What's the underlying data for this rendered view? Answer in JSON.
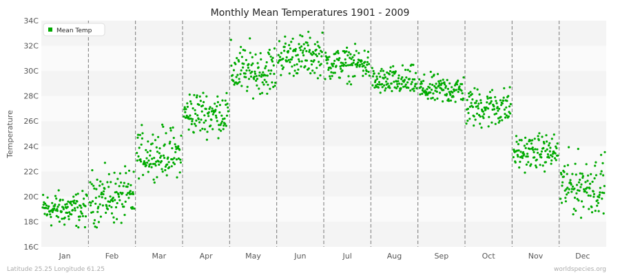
{
  "chart_data": {
    "type": "scatter",
    "title": "Monthly Mean Temperatures 1901 - 2009",
    "ylabel": "Temperature",
    "xlabel": "",
    "categories": [
      "Jan",
      "Feb",
      "Mar",
      "Apr",
      "May",
      "Jun",
      "Jul",
      "Aug",
      "Sep",
      "Oct",
      "Nov",
      "Dec"
    ],
    "y_ticks": [
      "16C",
      "18C",
      "20C",
      "22C",
      "24C",
      "26C",
      "28C",
      "30C",
      "32C",
      "34C"
    ],
    "ylim": [
      16,
      34
    ],
    "grid": "alternating horizontal bands, dashed vertical month separators",
    "legend": {
      "position": "top-left"
    },
    "series": [
      {
        "name": "Mean Temp",
        "color": "#00aa00",
        "years": [
          1901,
          2009
        ],
        "points_per_month": 109,
        "monthly_center": [
          19.0,
          20.0,
          23.2,
          26.5,
          29.8,
          31.1,
          30.6,
          29.0,
          28.5,
          27.2,
          23.5,
          20.8
        ],
        "monthly_min": [
          16.9,
          16.8,
          21.0,
          24.2,
          27.5,
          29.0,
          28.6,
          27.8,
          26.8,
          24.6,
          21.6,
          17.6
        ],
        "monthly_max": [
          21.0,
          23.0,
          26.5,
          29.5,
          33.2,
          33.8,
          32.4,
          31.0,
          30.2,
          29.3,
          25.6,
          24.5
        ]
      }
    ]
  },
  "footer": {
    "left": "Latitude 25.25 Longitude 61.25",
    "right": "worldspecies.org"
  }
}
